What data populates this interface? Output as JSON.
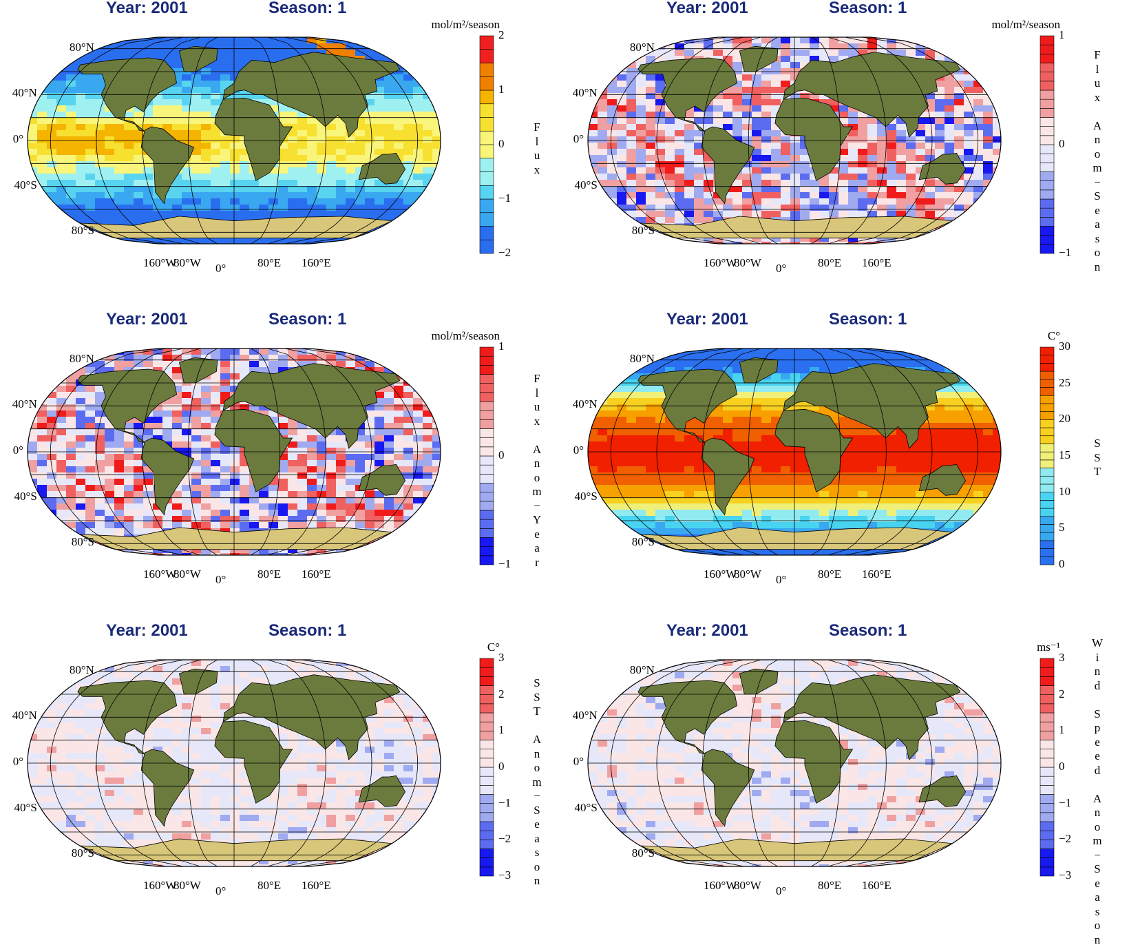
{
  "colors": {
    "title": "#1a2a7a",
    "land": "#6b7b3e",
    "ice": "#d8c77a",
    "graticule": "#000000",
    "flux_palette": [
      "#2a6ef0",
      "#39a8f0",
      "#58d4f0",
      "#9ff0f0",
      "#f8f57a",
      "#f8e030",
      "#f4b400",
      "#f08000",
      "#f02020"
    ],
    "diverging_palette": [
      "#1818f0",
      "#5c6cf0",
      "#a0aaf0",
      "#e6e8fa",
      "#fae6e6",
      "#f0a0a0",
      "#f06060",
      "#f01c1c"
    ],
    "sst_palette": [
      "#2a70f0",
      "#38a8f0",
      "#48d4f0",
      "#90eaf0",
      "#f0f078",
      "#f8d020",
      "#f8a000",
      "#f06000",
      "#f02000"
    ]
  },
  "axes": {
    "lat_labels": [
      "80°N",
      "40°N",
      "0°",
      "40°S",
      "80°S"
    ],
    "lon_labels": [
      "160°W",
      "80°W",
      "0°",
      "80°E",
      "160°E"
    ]
  },
  "panels": [
    {
      "year": "Year: 2001",
      "season": "Season: 1",
      "units": "mol/m²/season",
      "label": "F\nl\nu\nx",
      "ticks": [
        "2",
        "1",
        "0",
        "−1",
        "−2"
      ],
      "vmin": -2,
      "vmax": 2,
      "palette": "flux",
      "label_top": 175
    },
    {
      "year": "Year: 2001",
      "season": "Season: 1",
      "units": "mol/m²/season",
      "label": "F\nl\nu\nx\n \nA\nn\no\nm\n−\nS\ne\na\ns\no\nn",
      "ticks": [
        "1",
        "0",
        "−1"
      ],
      "vmin": -1,
      "vmax": 1,
      "palette": "diverging",
      "label_top": 70
    },
    {
      "year": "Year: 2001",
      "season": "Season: 1",
      "units": "mol/m²/season",
      "label": "F\nl\nu\nx\n \nA\nn\no\nm\n−\nY\ne\na\nr",
      "ticks": [
        "1",
        "0",
        "−1"
      ],
      "vmin": -1,
      "vmax": 1,
      "palette": "diverging",
      "label_top": 88
    },
    {
      "year": "Year: 2001",
      "season": "Season: 1",
      "units": "C°",
      "label": "S\nS\nT",
      "ticks": [
        "30",
        "25",
        "20",
        "15",
        "10",
        "5",
        "0"
      ],
      "vmin": 0,
      "vmax": 30,
      "palette": "sst",
      "label_top": 182
    },
    {
      "year": "Year: 2001",
      "season": "Season: 1",
      "units": "C°",
      "label": "S\nS\nT\n \nA\nn\no\nm\n−\nS\ne\na\ns\no\nn",
      "ticks": [
        "3",
        "2",
        "1",
        "0",
        "−1",
        "−2",
        "−3"
      ],
      "vmin": -3,
      "vmax": 3,
      "palette": "diverging",
      "label_top": 78
    },
    {
      "year": "Year: 2001",
      "season": "Season: 1",
      "units": "ms⁻¹",
      "label": "W\ni\nn\nd\n \nS\np\ne\ne\nd\n \nA\nn\no\nm\n−\nS\ne\na\ns\no\nn",
      "ticks": [
        "3",
        "2",
        "1",
        "0",
        "−1",
        "−2",
        "−3"
      ],
      "vmin": -3,
      "vmax": 3,
      "palette": "diverging",
      "label_top": 20
    }
  ],
  "chart_data": [
    {
      "type": "heatmap",
      "title": "Year: 2001  Season: 1",
      "colorbar_label": "Flux",
      "units": "mol/m²/season",
      "range": [
        -2,
        2
      ],
      "colorbar_ticks": [
        2,
        1,
        0,
        -1,
        -2
      ],
      "projection": "Eckert-like global",
      "xlabels": [
        "160°W",
        "80°W",
        "0°",
        "80°E",
        "160°E"
      ],
      "ylabels": [
        "80°N",
        "40°N",
        "0°",
        "40°S",
        "80°S"
      ]
    },
    {
      "type": "heatmap",
      "title": "Year: 2001  Season: 1",
      "colorbar_label": "Flux Anom− Season",
      "units": "mol/m²/season",
      "range": [
        -1,
        1
      ],
      "colorbar_ticks": [
        1,
        0,
        -1
      ],
      "xlabels": [
        "160°W",
        "80°W",
        "0°",
        "80°E",
        "160°E"
      ],
      "ylabels": [
        "80°N",
        "40°N",
        "0°",
        "40°S",
        "80°S"
      ]
    },
    {
      "type": "heatmap",
      "title": "Year: 2001  Season: 1",
      "colorbar_label": "Flux Anom− Year",
      "units": "mol/m²/season",
      "range": [
        -1,
        1
      ],
      "colorbar_ticks": [
        1,
        0,
        -1
      ],
      "xlabels": [
        "160°W",
        "80°W",
        "0°",
        "80°E",
        "160°E"
      ],
      "ylabels": [
        "80°N",
        "40°N",
        "0°",
        "40°S",
        "80°S"
      ]
    },
    {
      "type": "heatmap",
      "title": "Year: 2001  Season: 1",
      "colorbar_label": "SST",
      "units": "C°",
      "range": [
        0,
        30
      ],
      "colorbar_ticks": [
        30,
        25,
        20,
        15,
        10,
        5,
        0
      ],
      "xlabels": [
        "160°W",
        "80°W",
        "0°",
        "80°E",
        "160°E"
      ],
      "ylabels": [
        "80°N",
        "40°N",
        "0°",
        "40°S",
        "80°S"
      ]
    },
    {
      "type": "heatmap",
      "title": "Year: 2001  Season: 1",
      "colorbar_label": "SST Anom− Season",
      "units": "C°",
      "range": [
        -3,
        3
      ],
      "colorbar_ticks": [
        3,
        2,
        1,
        0,
        -1,
        -2,
        -3
      ],
      "xlabels": [
        "160°W",
        "80°W",
        "0°",
        "80°E",
        "160°E"
      ],
      "ylabels": [
        "80°N",
        "40°N",
        "0°",
        "40°S",
        "80°S"
      ]
    },
    {
      "type": "heatmap",
      "title": "Year: 2001  Season: 1",
      "colorbar_label": "Wind Speed Anom− Season",
      "units": "ms⁻¹",
      "range": [
        -3,
        3
      ],
      "colorbar_ticks": [
        3,
        2,
        1,
        0,
        -1,
        -2,
        -3
      ],
      "xlabels": [
        "160°W",
        "80°W",
        "0°",
        "80°E",
        "160°E"
      ],
      "ylabels": [
        "80°N",
        "40°N",
        "0°",
        "40°S",
        "80°S"
      ]
    }
  ]
}
